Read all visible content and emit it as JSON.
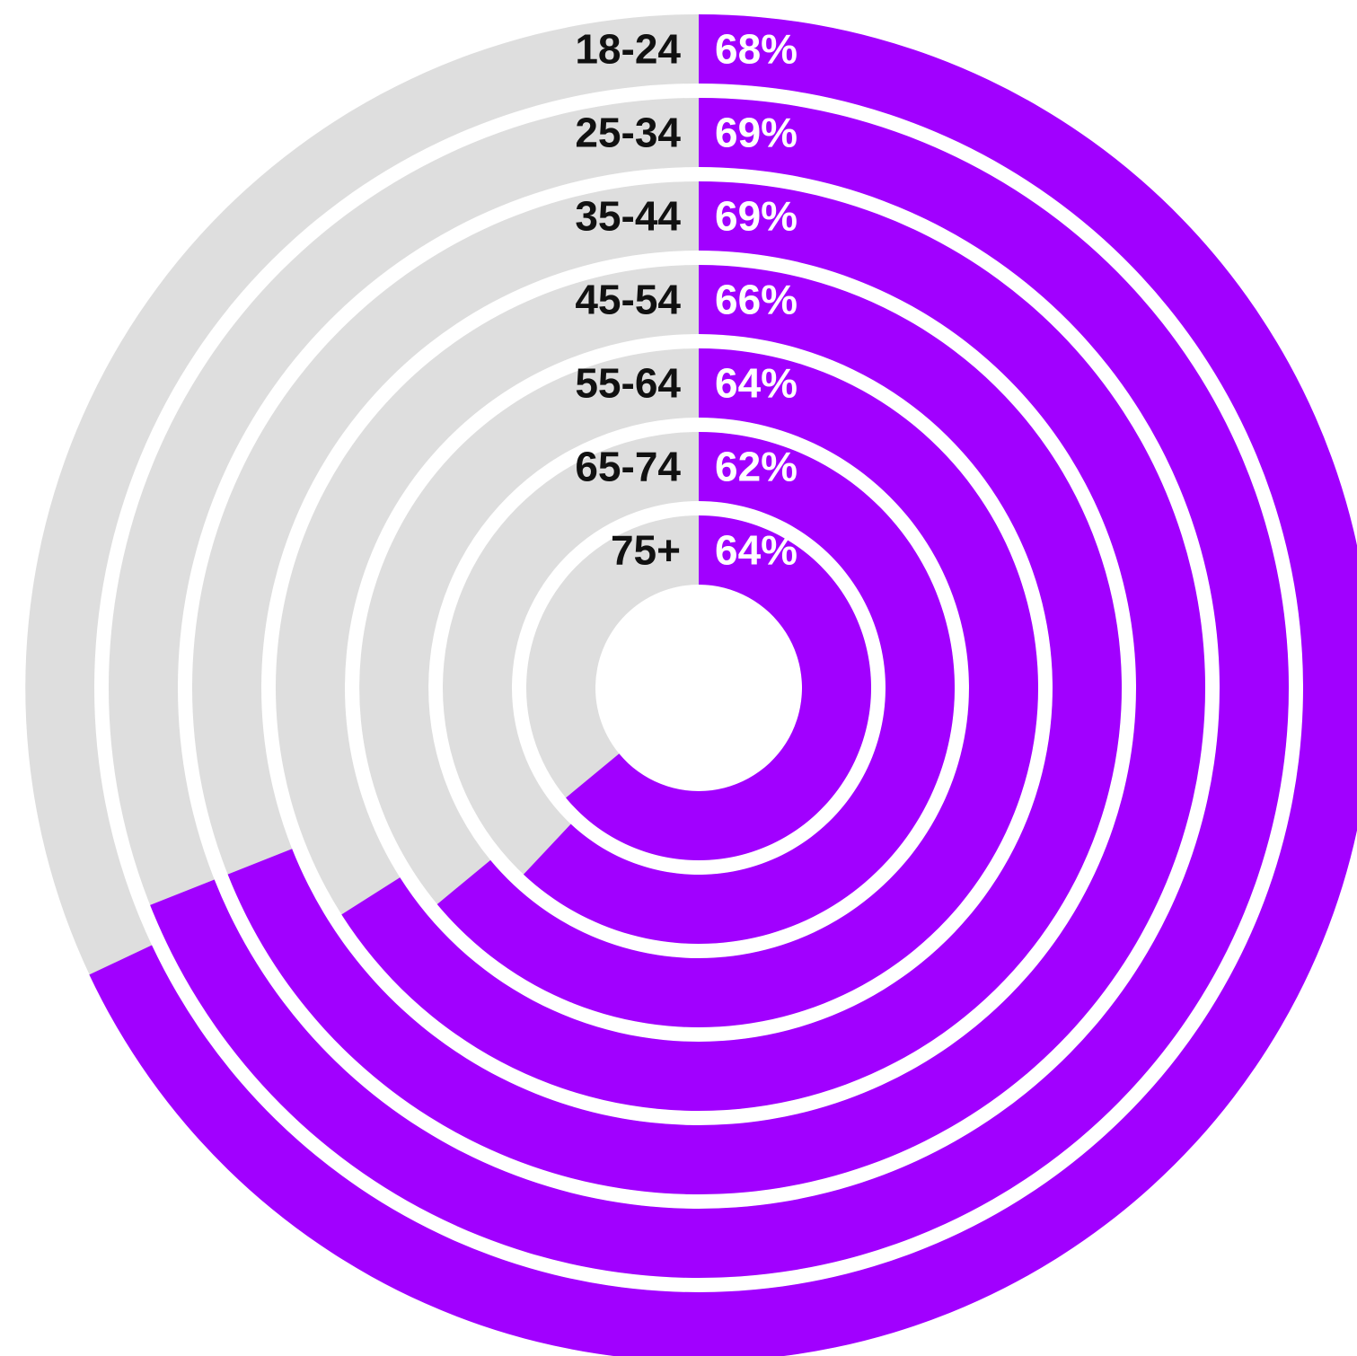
{
  "chart_data": {
    "type": "radial-bar",
    "unit": "%",
    "max": 100,
    "categories": [
      "18-24",
      "25-34",
      "35-44",
      "45-54",
      "55-64",
      "65-74",
      "75+"
    ],
    "values": [
      68,
      69,
      69,
      66,
      64,
      62,
      64
    ],
    "value_labels": [
      "68%",
      "69%",
      "69%",
      "66%",
      "64%",
      "62%",
      "64%"
    ],
    "colors": {
      "bar": "#A100FF",
      "track": "#DEDEDE",
      "category_text": "#111111",
      "value_text": "#FFFFFF"
    },
    "legend": "none",
    "grid": false
  }
}
